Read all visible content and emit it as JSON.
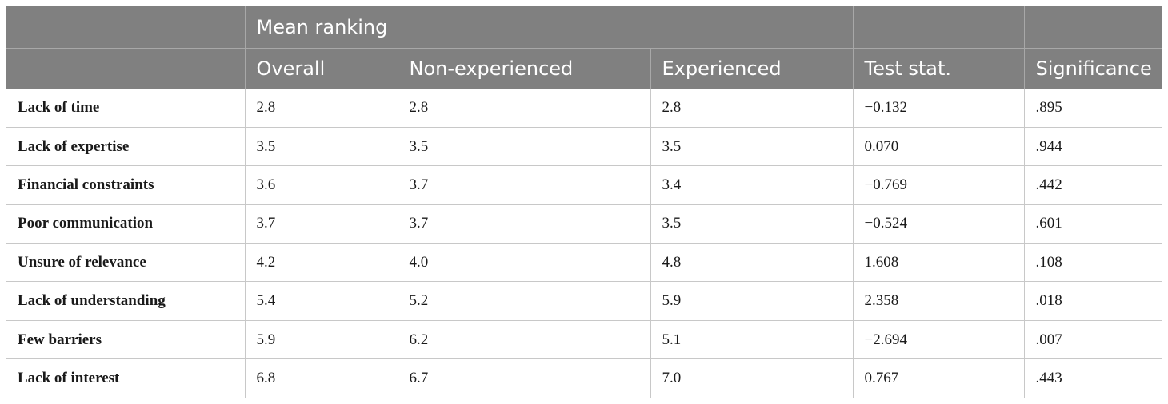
{
  "table": {
    "group_header": "Mean ranking",
    "columns": [
      "Overall",
      "Non-experienced",
      "Experienced",
      "Test stat.",
      "Significance"
    ],
    "rows": [
      [
        "Lack of time",
        "2.8",
        "2.8",
        "2.8",
        "−0.132",
        ".895"
      ],
      [
        "Lack of expertise",
        "3.5",
        "3.5",
        "3.5",
        "0.070",
        ".944"
      ],
      [
        "Financial constraints",
        "3.6",
        "3.7",
        "3.4",
        "−0.769",
        ".442"
      ],
      [
        "Poor communication",
        "3.7",
        "3.7",
        "3.5",
        "−0.524",
        ".601"
      ],
      [
        "Unsure of relevance",
        "4.2",
        "4.0",
        "4.8",
        "1.608",
        ".108"
      ],
      [
        "Lack of understanding",
        "5.4",
        "5.2",
        "5.9",
        "2.358",
        ".018"
      ],
      [
        "Few barriers",
        "5.9",
        "6.2",
        "5.1",
        "−2.694",
        ".007"
      ],
      [
        "Lack of interest",
        "6.8",
        "6.7",
        "7.0",
        "0.767",
        ".443"
      ]
    ]
  },
  "colors": {
    "header_bg": "#808080",
    "header_text": "#ffffff",
    "border": "#c8c8c8"
  }
}
